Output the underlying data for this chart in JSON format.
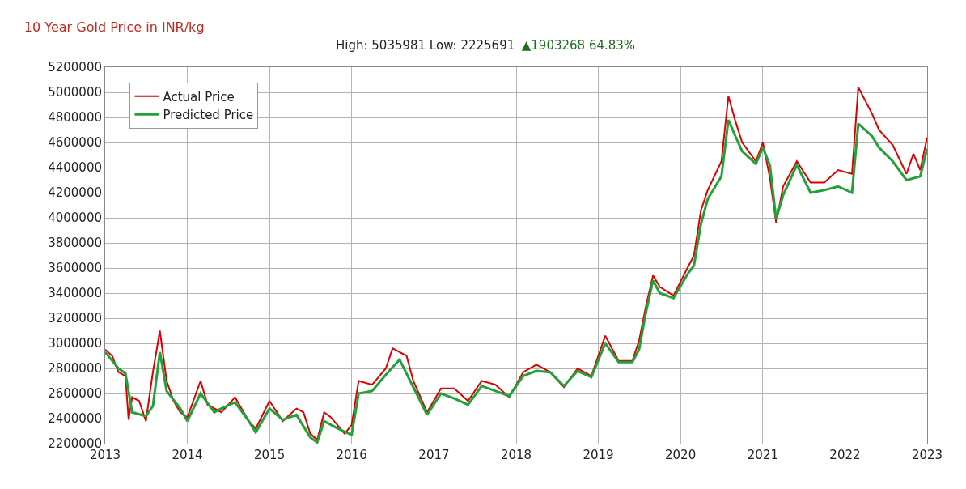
{
  "chart_data": {
    "type": "line",
    "title": "10 Year Gold Price in INR/kg",
    "subtitle": "High: 5035981 Low: 2225691",
    "annotations": [
      "▲1903268 64.83%"
    ],
    "xlim": [
      "2013-01-01",
      "2023-01-01"
    ],
    "xticks": [
      "2013",
      "2014",
      "2015",
      "2016",
      "2017",
      "2018",
      "2019",
      "2020",
      "2021",
      "2022",
      "2023"
    ],
    "ylim": [
      2200000,
      5200000
    ],
    "yticks": [
      2200000,
      2400000,
      2600000,
      2800000,
      3000000,
      3200000,
      3400000,
      3600000,
      3800000,
      4000000,
      4200000,
      4400000,
      4600000,
      4800000,
      5000000,
      5200000
    ],
    "grid": true,
    "legend": "top left",
    "line_style": "solid",
    "series": [
      {
        "name": "Actual Price",
        "color": "#dd0000",
        "x": [
          "2013-01",
          "2013-02",
          "2013-03",
          "2013-04",
          "2013-04-15",
          "2013-05",
          "2013-06",
          "2013-07",
          "2013-08",
          "2013-09",
          "2013-10",
          "2013-11",
          "2013-12",
          "2014-01",
          "2014-03",
          "2014-04",
          "2014-06",
          "2014-08",
          "2014-10",
          "2014-11",
          "2015-01",
          "2015-03",
          "2015-05",
          "2015-06",
          "2015-07",
          "2015-08",
          "2015-09",
          "2015-10",
          "2015-12",
          "2016-01",
          "2016-02",
          "2016-04",
          "2016-06",
          "2016-07",
          "2016-09",
          "2016-10",
          "2016-12",
          "2017-02",
          "2017-04",
          "2017-06",
          "2017-08",
          "2017-10",
          "2017-12",
          "2018-02",
          "2018-04",
          "2018-06",
          "2018-08",
          "2018-10",
          "2018-12",
          "2019-02",
          "2019-04",
          "2019-06",
          "2019-07",
          "2019-08",
          "2019-09",
          "2019-10",
          "2019-12",
          "2020-02",
          "2020-03",
          "2020-04",
          "2020-05",
          "2020-07",
          "2020-08",
          "2020-09",
          "2020-10",
          "2020-12",
          "2021-01",
          "2021-02",
          "2021-03",
          "2021-04",
          "2021-06",
          "2021-08",
          "2021-10",
          "2021-12",
          "2022-02",
          "2022-03",
          "2022-05",
          "2022-06",
          "2022-08",
          "2022-10",
          "2022-11",
          "2022-12",
          "2023-01"
        ],
        "values": [
          2950000,
          2900000,
          2770000,
          2740000,
          2390000,
          2570000,
          2540000,
          2380000,
          2770000,
          3100000,
          2700000,
          2540000,
          2450000,
          2410000,
          2700000,
          2510000,
          2450000,
          2570000,
          2380000,
          2320000,
          2540000,
          2380000,
          2480000,
          2450000,
          2280000,
          2230000,
          2450000,
          2410000,
          2280000,
          2350000,
          2700000,
          2670000,
          2800000,
          2960000,
          2900000,
          2700000,
          2450000,
          2640000,
          2640000,
          2540000,
          2700000,
          2670000,
          2570000,
          2770000,
          2830000,
          2770000,
          2650000,
          2800000,
          2740000,
          3060000,
          2860000,
          2860000,
          3020000,
          3300000,
          3540000,
          3450000,
          3380000,
          3600000,
          3700000,
          4060000,
          4220000,
          4450000,
          4970000,
          4770000,
          4600000,
          4450000,
          4600000,
          4320000,
          3960000,
          4250000,
          4450000,
          4280000,
          4280000,
          4380000,
          4350000,
          5040000,
          4830000,
          4700000,
          4580000,
          4350000,
          4510000,
          4380000,
          4640000
        ]
      },
      {
        "name": "Predicted Price",
        "color": "#22a03a",
        "x": [
          "2013-01",
          "2013-03",
          "2013-04",
          "2013-05",
          "2013-07",
          "2013-08",
          "2013-09",
          "2013-10",
          "2013-12",
          "2014-01",
          "2014-03",
          "2014-05",
          "2014-06",
          "2014-08",
          "2014-10",
          "2014-11",
          "2015-01",
          "2015-03",
          "2015-05",
          "2015-07",
          "2015-08",
          "2015-09",
          "2015-11",
          "2016-01",
          "2016-02",
          "2016-04",
          "2016-06",
          "2016-08",
          "2016-10",
          "2016-12",
          "2017-02",
          "2017-04",
          "2017-06",
          "2017-08",
          "2017-10",
          "2017-12",
          "2018-02",
          "2018-04",
          "2018-06",
          "2018-08",
          "2018-10",
          "2018-12",
          "2019-02",
          "2019-04",
          "2019-06",
          "2019-07",
          "2019-08",
          "2019-09",
          "2019-10",
          "2019-12",
          "2020-02",
          "2020-03",
          "2020-04",
          "2020-05",
          "2020-07",
          "2020-08",
          "2020-09",
          "2020-10",
          "2020-12",
          "2021-01",
          "2021-02",
          "2021-03",
          "2021-04",
          "2021-06",
          "2021-08",
          "2021-10",
          "2021-12",
          "2022-02",
          "2022-03",
          "2022-05",
          "2022-06",
          "2022-08",
          "2022-10",
          "2022-12",
          "2023-01"
        ],
        "values": [
          2930000,
          2800000,
          2760000,
          2450000,
          2420000,
          2500000,
          2930000,
          2620000,
          2480000,
          2380000,
          2600000,
          2450000,
          2480000,
          2530000,
          2380000,
          2290000,
          2480000,
          2390000,
          2430000,
          2250000,
          2210000,
          2380000,
          2320000,
          2270000,
          2600000,
          2620000,
          2750000,
          2870000,
          2650000,
          2430000,
          2600000,
          2560000,
          2510000,
          2660000,
          2620000,
          2580000,
          2740000,
          2780000,
          2770000,
          2660000,
          2780000,
          2730000,
          3000000,
          2850000,
          2850000,
          2950000,
          3250000,
          3500000,
          3400000,
          3360000,
          3550000,
          3620000,
          3950000,
          4150000,
          4330000,
          4780000,
          4650000,
          4530000,
          4430000,
          4560000,
          4420000,
          3990000,
          4180000,
          4420000,
          4200000,
          4220000,
          4250000,
          4200000,
          4750000,
          4650000,
          4560000,
          4450000,
          4300000,
          4330000,
          4550000
        ]
      }
    ]
  }
}
